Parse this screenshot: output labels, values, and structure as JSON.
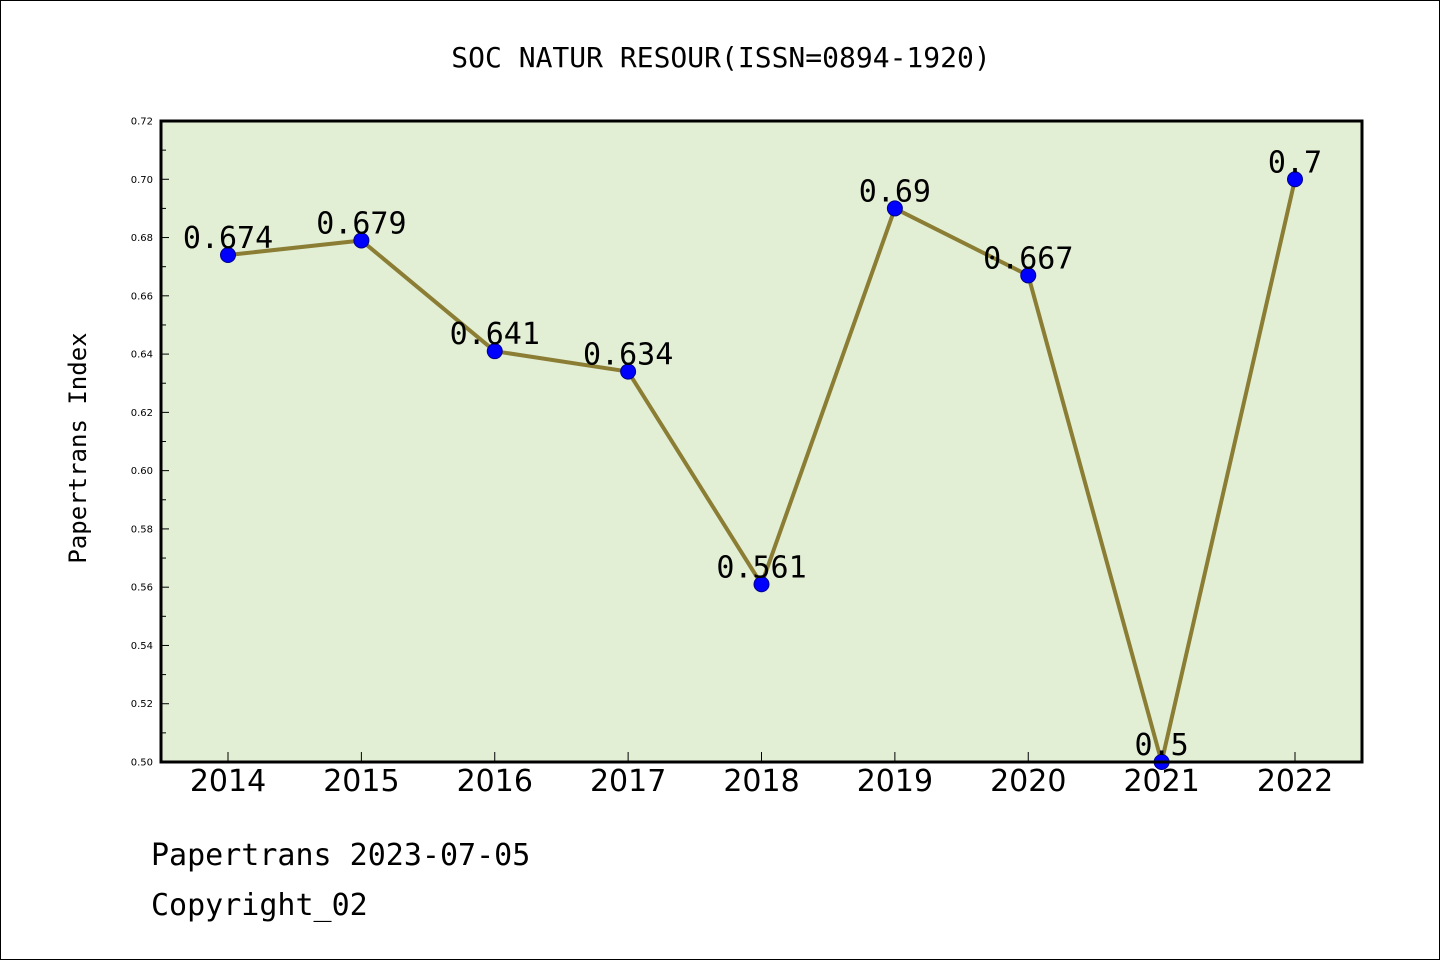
{
  "chart_data": {
    "type": "line",
    "title": "SOC NATUR RESOUR(ISSN=0894-1920)",
    "xlabel": "",
    "ylabel": "Papertrans Index",
    "categories": [
      "2014",
      "2015",
      "2016",
      "2017",
      "2018",
      "2019",
      "2020",
      "2021",
      "2022"
    ],
    "values": [
      0.674,
      0.679,
      0.641,
      0.634,
      0.561,
      0.69,
      0.667,
      0.5,
      0.7
    ],
    "data_labels": [
      "0.674",
      "0.679",
      "0.641",
      "0.634",
      "0.561",
      "0.69",
      "0.667",
      "0.5",
      "0.7"
    ],
    "ylim": [
      0.5,
      0.72
    ],
    "yticks": [
      "0.50",
      "0.52",
      "0.54",
      "0.56",
      "0.58",
      "0.60",
      "0.62",
      "0.64",
      "0.66",
      "0.68",
      "0.70",
      "0.72"
    ],
    "grid": false,
    "legend": "none",
    "colors": {
      "plot_background": "#e2efd5",
      "line": "#8b7e34",
      "marker": "#0000ff"
    }
  },
  "footer": {
    "line1": "Papertrans 2023-07-05",
    "line2": "Copyright_02"
  }
}
